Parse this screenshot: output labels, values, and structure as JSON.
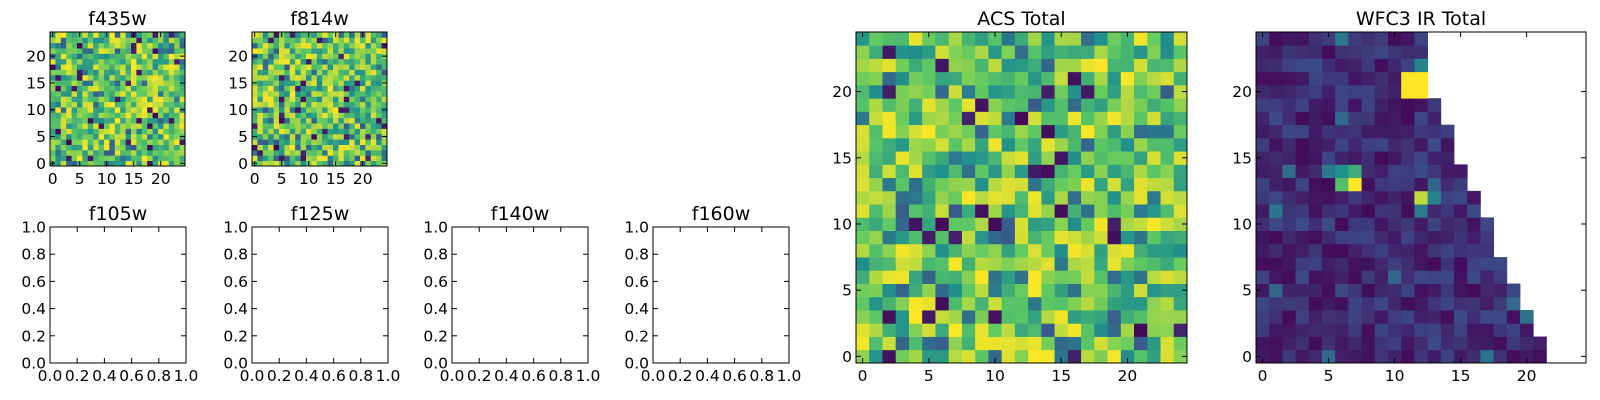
{
  "colormap": [
    "#440154",
    "#3b528b",
    "#21918c",
    "#5ec962",
    "#fde725"
  ],
  "chart_data": [
    {
      "type": "heatmap",
      "title": "f435w",
      "grid": [
        25,
        25
      ],
      "xlim": [
        -0.5,
        24.5
      ],
      "ylim": [
        -0.5,
        24.5
      ],
      "xticks": [
        0,
        5,
        10,
        15,
        20
      ],
      "yticks": [
        0,
        5,
        10,
        15,
        20
      ],
      "seed": 11,
      "pattern": "noise",
      "empty": false
    },
    {
      "type": "heatmap",
      "title": "f814w",
      "grid": [
        25,
        25
      ],
      "xlim": [
        -0.5,
        24.5
      ],
      "ylim": [
        -0.5,
        24.5
      ],
      "xticks": [
        0,
        5,
        10,
        15,
        20
      ],
      "yticks": [
        0,
        5,
        10,
        15,
        20
      ],
      "seed": 23,
      "pattern": "noise",
      "empty": false
    },
    {
      "type": "heatmap",
      "title": "f105w",
      "xlim": [
        0,
        1
      ],
      "ylim": [
        0,
        1
      ],
      "xticks": [
        "0.0",
        "0.2",
        "0.4",
        "0.6",
        "0.8",
        "1.0"
      ],
      "yticks": [
        "0.0",
        "0.2",
        "0.4",
        "0.6",
        "0.8",
        "1.0"
      ],
      "empty": true
    },
    {
      "type": "heatmap",
      "title": "f125w",
      "xlim": [
        0,
        1
      ],
      "ylim": [
        0,
        1
      ],
      "xticks": [
        "0.0",
        "0.2",
        "0.4",
        "0.6",
        "0.8",
        "1.0"
      ],
      "yticks": [
        "0.0",
        "0.2",
        "0.4",
        "0.6",
        "0.8",
        "1.0"
      ],
      "empty": true
    },
    {
      "type": "heatmap",
      "title": "f140w",
      "xlim": [
        0,
        1
      ],
      "ylim": [
        0,
        1
      ],
      "xticks": [
        "0.0",
        "0.2",
        "0.4",
        "0.6",
        "0.8",
        "1.0"
      ],
      "yticks": [
        "0.0",
        "0.2",
        "0.4",
        "0.6",
        "0.8",
        "1.0"
      ],
      "empty": true
    },
    {
      "type": "heatmap",
      "title": "f160w",
      "xlim": [
        0,
        1
      ],
      "ylim": [
        0,
        1
      ],
      "xticks": [
        "0.0",
        "0.2",
        "0.4",
        "0.6",
        "0.8",
        "1.0"
      ],
      "yticks": [
        "0.0",
        "0.2",
        "0.4",
        "0.6",
        "0.8",
        "1.0"
      ],
      "empty": true
    },
    {
      "type": "heatmap",
      "title": "ACS Total",
      "grid": [
        25,
        25
      ],
      "xlim": [
        -0.5,
        24.5
      ],
      "ylim": [
        -0.5,
        24.5
      ],
      "xticks": [
        0,
        5,
        10,
        15,
        20
      ],
      "yticks": [
        0,
        5,
        10,
        15,
        20
      ],
      "seed": 37,
      "pattern": "noise",
      "empty": false
    },
    {
      "type": "heatmap",
      "title": "WFC3 IR Total",
      "grid": [
        25,
        25
      ],
      "xlim": [
        -0.5,
        24.5
      ],
      "ylim": [
        -0.5,
        24.5
      ],
      "xticks": [
        0,
        5,
        10,
        15,
        20
      ],
      "yticks": [
        0,
        5,
        10,
        15,
        20
      ],
      "seed": 53,
      "pattern": "triangle",
      "row_extent": [
        22,
        22,
        21,
        21,
        20,
        20,
        19,
        19,
        18,
        18,
        18,
        17,
        17,
        16,
        16,
        15,
        15,
        15,
        14,
        14,
        13,
        13,
        13,
        13,
        13
      ],
      "hotspots": [
        {
          "x": 11,
          "y": 20,
          "v": 1.0
        },
        {
          "x": 12,
          "y": 20,
          "v": 1.0
        },
        {
          "x": 11,
          "y": 21,
          "v": 1.0
        },
        {
          "x": 12,
          "y": 21,
          "v": 1.0
        },
        {
          "x": 12,
          "y": 22,
          "v": 0.45
        },
        {
          "x": 7,
          "y": 13,
          "v": 1.0
        },
        {
          "x": 6,
          "y": 13,
          "v": 0.7
        },
        {
          "x": 7,
          "y": 14,
          "v": 0.62
        },
        {
          "x": 6,
          "y": 14,
          "v": 0.5
        },
        {
          "x": 12,
          "y": 12,
          "v": 0.9
        },
        {
          "x": 13,
          "y": 12,
          "v": 0.45
        },
        {
          "x": 12,
          "y": 11,
          "v": 0.4
        }
      ],
      "empty": false
    }
  ]
}
